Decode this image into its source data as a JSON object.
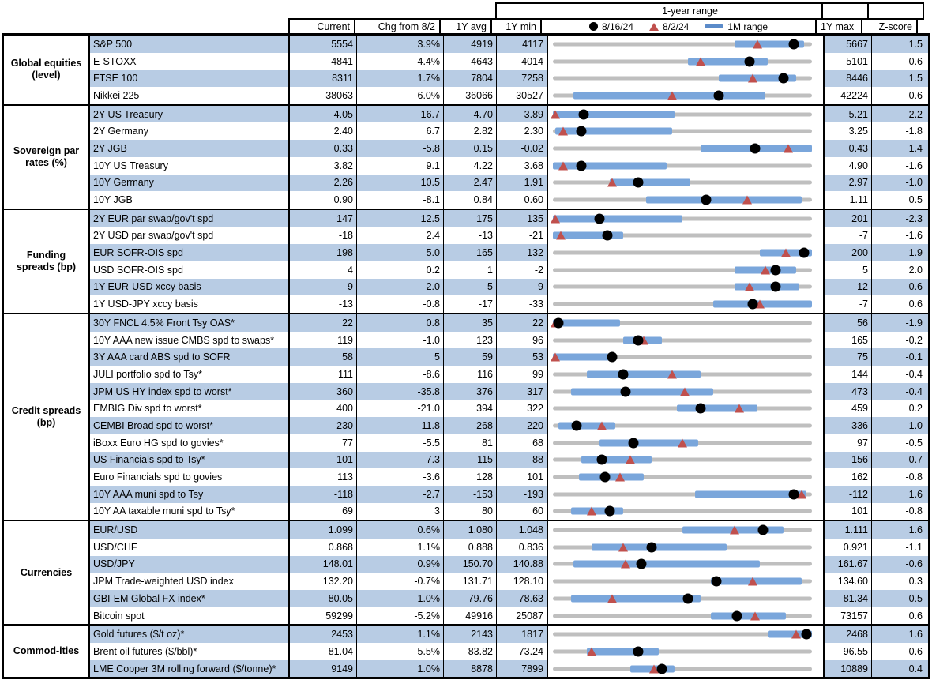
{
  "colors": {
    "row_stripe": "#b8cce4",
    "one_month_bar": "#7aa6db",
    "year_range_line": "#bfbfbf",
    "current_dot": "#000000",
    "prior_triangle": "#c0504d",
    "border": "#000000"
  },
  "chart_data": {
    "type": "table",
    "subtype": "bullet-range rows (1Y min-max gray line, 1M range blue bar, dot = 8/16/24 value, triangle = 8/2/24 value)",
    "title": "1-year range",
    "columns": {
      "current": "Current",
      "chg": "Chg from 8/2",
      "avg": "1Y avg",
      "min": "1Y min",
      "max": "1Y max",
      "z": "Z-score"
    },
    "legend": {
      "dot_label": "8/16/24",
      "triangle_label": "8/2/24",
      "bar_label": "1M range"
    },
    "sections": [
      {
        "category": "Global equities (level)",
        "rows": [
          {
            "label": "S&P 500",
            "current": "5554",
            "chg": "3.9%",
            "avg": "4919",
            "min": "4117",
            "max": "5667",
            "z": "1.5",
            "dot": 0.93,
            "tri": 0.79,
            "bar": [
              0.7,
              0.97
            ]
          },
          {
            "label": "E-STOXX",
            "current": "4841",
            "chg": "4.4%",
            "avg": "4643",
            "min": "4014",
            "max": "5101",
            "z": "0.6",
            "dot": 0.76,
            "tri": 0.57,
            "bar": [
              0.52,
              0.83
            ]
          },
          {
            "label": "FTSE 100",
            "current": "8311",
            "chg": "1.7%",
            "avg": "7804",
            "min": "7258",
            "max": "8446",
            "z": "1.5",
            "dot": 0.89,
            "tri": 0.77,
            "bar": [
              0.64,
              0.94
            ]
          },
          {
            "label": "Nikkei 225",
            "current": "38063",
            "chg": "6.0%",
            "avg": "36066",
            "min": "30527",
            "max": "42224",
            "z": "0.6",
            "dot": 0.64,
            "tri": 0.46,
            "bar": [
              0.08,
              0.82
            ]
          }
        ]
      },
      {
        "category": "Sovereign par rates (%)",
        "rows": [
          {
            "label": "2Y US Treasury",
            "current": "4.05",
            "chg": "16.7",
            "avg": "4.70",
            "min": "3.89",
            "max": "5.21",
            "z": "-2.2",
            "dot": 0.12,
            "tri": 0.0,
            "bar": [
              0.0,
              0.47
            ]
          },
          {
            "label": "2Y Germany",
            "current": "2.40",
            "chg": "6.7",
            "avg": "2.82",
            "min": "2.30",
            "max": "3.25",
            "z": "-1.8",
            "dot": 0.11,
            "tri": 0.04,
            "bar": [
              0.01,
              0.46
            ]
          },
          {
            "label": "2Y JGB",
            "current": "0.33",
            "chg": "-5.8",
            "avg": "0.15",
            "min": "-0.02",
            "max": "0.43",
            "z": "1.4",
            "dot": 0.78,
            "tri": 0.91,
            "bar": [
              0.57,
              1.0
            ]
          },
          {
            "label": "10Y US Treasury",
            "current": "3.82",
            "chg": "9.1",
            "avg": "4.22",
            "min": "3.68",
            "max": "4.90",
            "z": "-1.6",
            "dot": 0.11,
            "tri": 0.04,
            "bar": [
              0.0,
              0.44
            ]
          },
          {
            "label": "10Y Germany",
            "current": "2.26",
            "chg": "10.5",
            "avg": "2.47",
            "min": "1.91",
            "max": "2.97",
            "z": "-1.0",
            "dot": 0.33,
            "tri": 0.23,
            "bar": [
              0.22,
              0.53
            ]
          },
          {
            "label": "10Y JGB",
            "current": "0.90",
            "chg": "-8.1",
            "avg": "0.84",
            "min": "0.60",
            "max": "1.11",
            "z": "0.5",
            "dot": 0.59,
            "tri": 0.75,
            "bar": [
              0.36,
              0.96
            ]
          }
        ]
      },
      {
        "category": "Funding spreads (bp)",
        "rows": [
          {
            "label": "2Y EUR par swap/gov't spd",
            "current": "147",
            "chg": "12.5",
            "avg": "175",
            "min": "135",
            "max": "201",
            "z": "-2.3",
            "dot": 0.18,
            "tri": 0.0,
            "bar": [
              0.0,
              0.5
            ]
          },
          {
            "label": "2Y USD par swap/gov't spd",
            "current": "-18",
            "chg": "2.4",
            "avg": "-13",
            "min": "-21",
            "max": "-7",
            "z": "-1.6",
            "dot": 0.21,
            "tri": 0.03,
            "bar": [
              0.0,
              0.27
            ]
          },
          {
            "label": "EUR SOFR-OIS spd",
            "current": "198",
            "chg": "5.0",
            "avg": "165",
            "min": "132",
            "max": "200",
            "z": "1.9",
            "dot": 0.97,
            "tri": 0.9,
            "bar": [
              0.8,
              1.0
            ]
          },
          {
            "label": "USD SOFR-OIS spd",
            "current": "4",
            "chg": "0.2",
            "avg": "1",
            "min": "-2",
            "max": "5",
            "z": "2.0",
            "dot": 0.86,
            "tri": 0.82,
            "bar": [
              0.7,
              0.94
            ]
          },
          {
            "label": "1Y EUR-USD xccy basis",
            "current": "9",
            "chg": "2.0",
            "avg": "5",
            "min": "-9",
            "max": "12",
            "z": "0.6",
            "dot": 0.86,
            "tri": 0.76,
            "bar": [
              0.7,
              0.95
            ]
          },
          {
            "label": "1Y USD-JPY xccy basis",
            "current": "-13",
            "chg": "-0.8",
            "avg": "-17",
            "min": "-33",
            "max": "-7",
            "z": "0.6",
            "dot": 0.77,
            "tri": 0.8,
            "bar": [
              0.62,
              1.0
            ]
          }
        ]
      },
      {
        "category": "Credit spreads (bp)",
        "rows": [
          {
            "label": "30Y FNCL 4.5% Front Tsy OAS*",
            "current": "22",
            "chg": "0.8",
            "avg": "35",
            "min": "22",
            "max": "56",
            "z": "-1.9",
            "dot": 0.02,
            "tri": 0.0,
            "bar": [
              0.0,
              0.26
            ]
          },
          {
            "label": "10Y AAA new issue CMBS spd to swaps*",
            "current": "119",
            "chg": "-1.0",
            "avg": "123",
            "min": "96",
            "max": "165",
            "z": "-0.2",
            "dot": 0.33,
            "tri": 0.35,
            "bar": [
              0.27,
              0.42
            ]
          },
          {
            "label": "3Y AAA card ABS spd to SOFR",
            "current": "58",
            "chg": "5",
            "avg": "59",
            "min": "53",
            "max": "75",
            "z": "-0.1",
            "dot": 0.23,
            "tri": 0.0,
            "bar": [
              0.0,
              0.23
            ]
          },
          {
            "label": "JULI portfolio spd to Tsy*",
            "current": "111",
            "chg": "-8.6",
            "avg": "116",
            "min": "99",
            "max": "144",
            "z": "-0.4",
            "dot": 0.27,
            "tri": 0.46,
            "bar": [
              0.13,
              0.57
            ]
          },
          {
            "label": "JPM US HY index spd to worst*",
            "current": "360",
            "chg": "-35.8",
            "avg": "376",
            "min": "317",
            "max": "473",
            "z": "-0.4",
            "dot": 0.28,
            "tri": 0.51,
            "bar": [
              0.07,
              0.62
            ]
          },
          {
            "label": "EMBIG Div spd to worst*",
            "current": "400",
            "chg": "-21.0",
            "avg": "394",
            "min": "322",
            "max": "459",
            "z": "0.2",
            "dot": 0.57,
            "tri": 0.72,
            "bar": [
              0.48,
              0.79
            ]
          },
          {
            "label": "CEMBI Broad spd to worst*",
            "current": "230",
            "chg": "-11.8",
            "avg": "268",
            "min": "220",
            "max": "336",
            "z": "-1.0",
            "dot": 0.09,
            "tri": 0.19,
            "bar": [
              0.02,
              0.24
            ]
          },
          {
            "label": "iBoxx Euro HG spd to govies*",
            "current": "77",
            "chg": "-5.5",
            "avg": "81",
            "min": "68",
            "max": "97",
            "z": "-0.5",
            "dot": 0.31,
            "tri": 0.5,
            "bar": [
              0.18,
              0.56
            ]
          },
          {
            "label": "US Financials spd to Tsy*",
            "current": "101",
            "chg": "-7.3",
            "avg": "115",
            "min": "88",
            "max": "156",
            "z": "-0.7",
            "dot": 0.19,
            "tri": 0.3,
            "bar": [
              0.11,
              0.38
            ]
          },
          {
            "label": "Euro Financials spd to govies",
            "current": "113",
            "chg": "-3.6",
            "avg": "128",
            "min": "101",
            "max": "162",
            "z": "-0.8",
            "dot": 0.2,
            "tri": 0.26,
            "bar": [
              0.1,
              0.35
            ]
          },
          {
            "label": "10Y AAA muni spd to Tsy",
            "current": "-118",
            "chg": "-2.7",
            "avg": "-153",
            "min": "-193",
            "max": "-112",
            "z": "1.6",
            "dot": 0.93,
            "tri": 0.96,
            "bar": [
              0.55,
              0.98
            ]
          },
          {
            "label": "10Y AA taxable muni spd to Tsy*",
            "current": "69",
            "chg": "3",
            "avg": "80",
            "min": "60",
            "max": "101",
            "z": "-0.8",
            "dot": 0.22,
            "tri": 0.15,
            "bar": [
              0.07,
              0.27
            ]
          }
        ]
      },
      {
        "category": "Currencies",
        "rows": [
          {
            "label": "EUR/USD",
            "current": "1.099",
            "chg": "0.6%",
            "avg": "1.080",
            "min": "1.048",
            "max": "1.111",
            "z": "1.6",
            "dot": 0.81,
            "tri": 0.7,
            "bar": [
              0.5,
              0.89
            ]
          },
          {
            "label": "USD/CHF",
            "current": "0.868",
            "chg": "1.1%",
            "avg": "0.888",
            "min": "0.836",
            "max": "0.921",
            "z": "-1.1",
            "dot": 0.38,
            "tri": 0.27,
            "bar": [
              0.15,
              0.67
            ]
          },
          {
            "label": "USD/JPY",
            "current": "148.01",
            "chg": "0.9%",
            "avg": "150.70",
            "min": "140.88",
            "max": "161.67",
            "z": "-0.6",
            "dot": 0.34,
            "tri": 0.28,
            "bar": [
              0.08,
              0.8
            ]
          },
          {
            "label": "JPM Trade-weighted USD index",
            "current": "132.20",
            "chg": "-0.7%",
            "avg": "131.71",
            "min": "128.10",
            "max": "134.60",
            "z": "0.3",
            "dot": 0.63,
            "tri": 0.77,
            "bar": [
              0.61,
              0.96
            ]
          },
          {
            "label": "GBI-EM Global FX index*",
            "current": "80.05",
            "chg": "1.0%",
            "avg": "79.76",
            "min": "78.63",
            "max": "81.34",
            "z": "0.5",
            "dot": 0.52,
            "tri": 0.23,
            "bar": [
              0.07,
              0.57
            ]
          },
          {
            "label": "Bitcoin spot",
            "current": "59299",
            "chg": "-5.2%",
            "avg": "49916",
            "min": "25087",
            "max": "73157",
            "z": "0.6",
            "dot": 0.71,
            "tri": 0.78,
            "bar": [
              0.61,
              0.9
            ]
          }
        ]
      },
      {
        "category": "Commod-ities",
        "rows": [
          {
            "label": "Gold futures ($/t oz)*",
            "current": "2453",
            "chg": "1.1%",
            "avg": "2143",
            "min": "1817",
            "max": "2468",
            "z": "1.6",
            "dot": 0.98,
            "tri": 0.94,
            "bar": [
              0.83,
              1.0
            ]
          },
          {
            "label": "Brent oil futures ($/bbl)*",
            "current": "81.04",
            "chg": "5.5%",
            "avg": "83.82",
            "min": "73.24",
            "max": "96.55",
            "z": "-0.6",
            "dot": 0.33,
            "tri": 0.15,
            "bar": [
              0.13,
              0.41
            ]
          },
          {
            "label": "LME Copper 3M rolling forward ($/tonne)*",
            "current": "9149",
            "chg": "1.0%",
            "avg": "8878",
            "min": "7899",
            "max": "10889",
            "z": "0.4",
            "dot": 0.42,
            "tri": 0.39,
            "bar": [
              0.3,
              0.47
            ]
          }
        ]
      }
    ]
  }
}
